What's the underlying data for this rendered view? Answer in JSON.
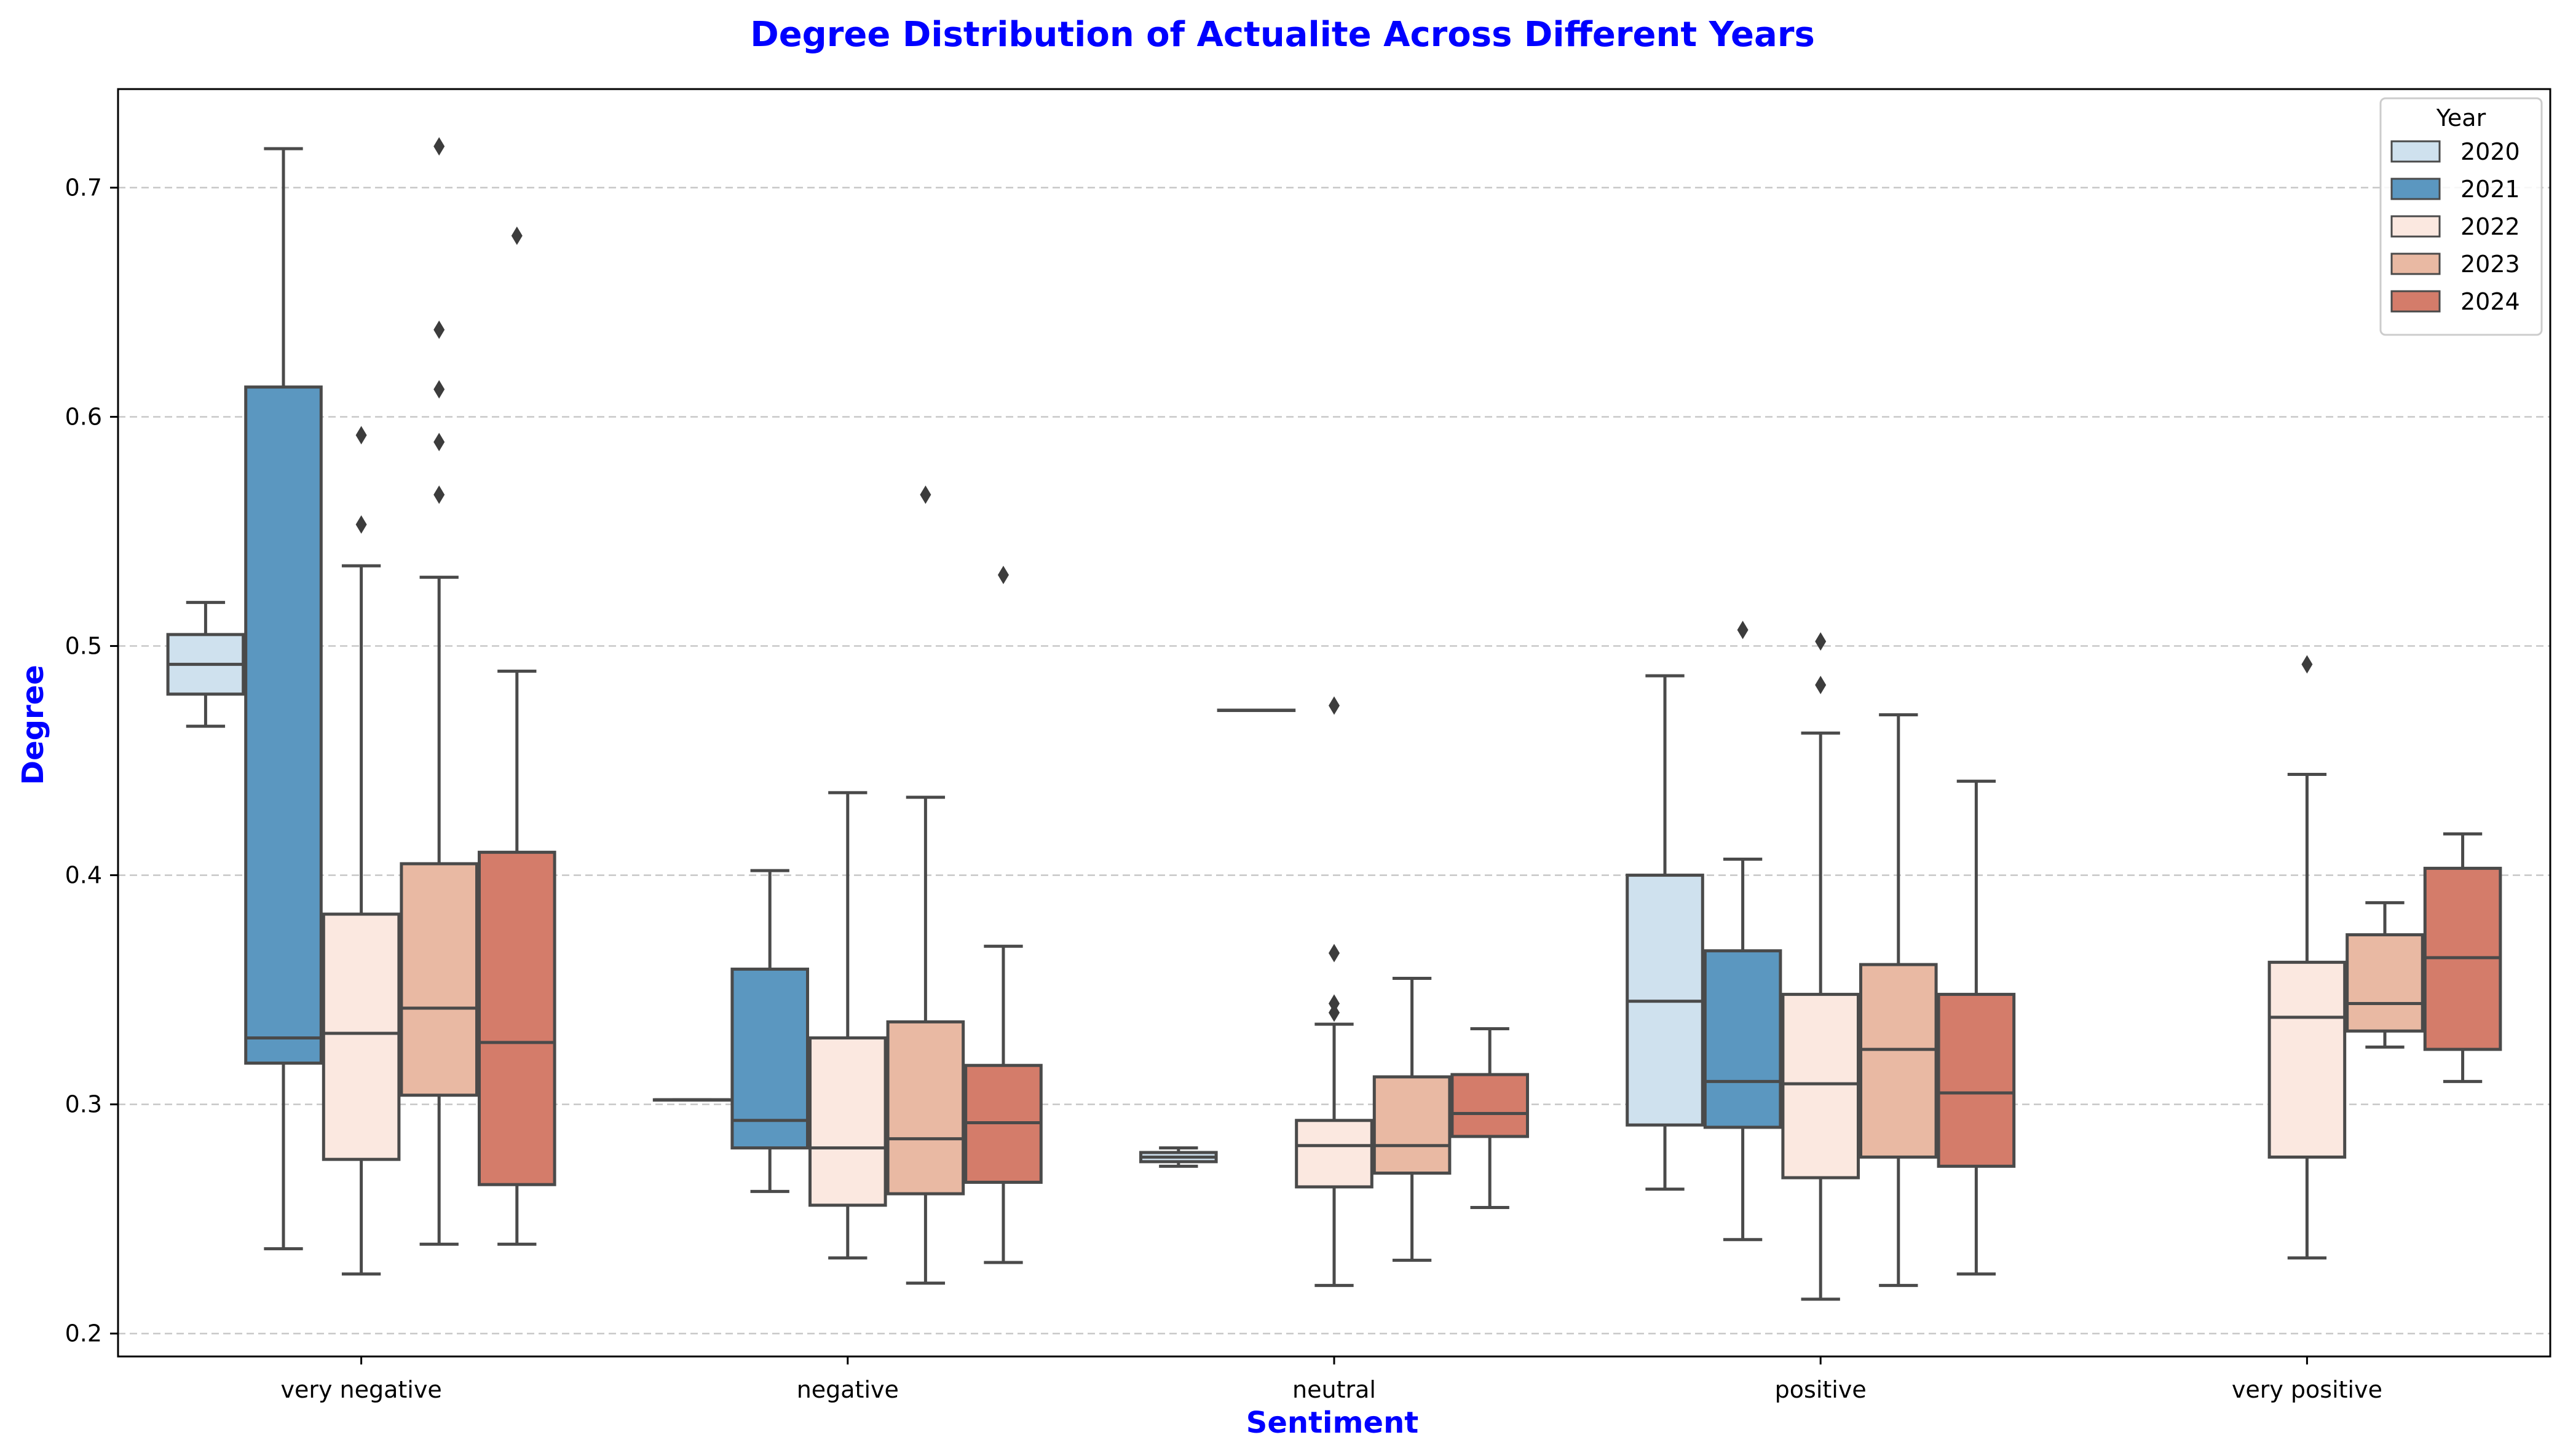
{
  "chart_data": {
    "type": "box",
    "title": "Degree Distribution of Actualite Across Different Years",
    "xlabel": "Sentiment",
    "ylabel": "Degree",
    "ylim": [
      0.19,
      0.743
    ],
    "yticks": [
      "0.2",
      "0.3",
      "0.4",
      "0.5",
      "0.6",
      "0.7"
    ],
    "categories": [
      "very negative",
      "negative",
      "neutral",
      "positive",
      "very positive"
    ],
    "grid": "horizontal dashed",
    "legend": {
      "title": "Year",
      "placement": "top-right"
    },
    "series": [
      {
        "name": "2020",
        "color": "#cfe1ee",
        "boxes": [
          {
            "category": "very negative",
            "whislo": 0.465,
            "q1": 0.479,
            "med": 0.492,
            "q3": 0.505,
            "whishi": 0.519,
            "fliers": []
          },
          {
            "category": "negative",
            "whislo": 0.302,
            "q1": 0.302,
            "med": 0.302,
            "q3": 0.302,
            "whishi": 0.302,
            "fliers": []
          },
          {
            "category": "neutral",
            "whislo": 0.273,
            "q1": 0.275,
            "med": 0.277,
            "q3": 0.279,
            "whishi": 0.281,
            "fliers": []
          },
          {
            "category": "positive",
            "whislo": 0.263,
            "q1": 0.291,
            "med": 0.345,
            "q3": 0.4,
            "whishi": 0.487,
            "fliers": []
          }
        ]
      },
      {
        "name": "2021",
        "color": "#5b97c0",
        "boxes": [
          {
            "category": "very negative",
            "whislo": 0.237,
            "q1": 0.318,
            "med": 0.329,
            "q3": 0.613,
            "whishi": 0.717,
            "fliers": []
          },
          {
            "category": "negative",
            "whislo": 0.262,
            "q1": 0.281,
            "med": 0.293,
            "q3": 0.359,
            "whishi": 0.402,
            "fliers": []
          },
          {
            "category": "neutral",
            "whislo": 0.472,
            "q1": 0.472,
            "med": 0.472,
            "q3": 0.472,
            "whishi": 0.472,
            "fliers": []
          },
          {
            "category": "positive",
            "whislo": 0.241,
            "q1": 0.29,
            "med": 0.31,
            "q3": 0.367,
            "whishi": 0.407,
            "fliers": [
              0.507
            ]
          }
        ]
      },
      {
        "name": "2022",
        "color": "#fbe8e0",
        "boxes": [
          {
            "category": "very negative",
            "whislo": 0.226,
            "q1": 0.276,
            "med": 0.331,
            "q3": 0.383,
            "whishi": 0.535,
            "fliers": [
              0.553,
              0.592
            ]
          },
          {
            "category": "negative",
            "whislo": 0.233,
            "q1": 0.256,
            "med": 0.281,
            "q3": 0.329,
            "whishi": 0.436,
            "fliers": []
          },
          {
            "category": "neutral",
            "whislo": 0.221,
            "q1": 0.264,
            "med": 0.282,
            "q3": 0.293,
            "whishi": 0.335,
            "fliers": [
              0.34,
              0.344,
              0.366,
              0.474
            ]
          },
          {
            "category": "positive",
            "whislo": 0.215,
            "q1": 0.268,
            "med": 0.309,
            "q3": 0.348,
            "whishi": 0.462,
            "fliers": [
              0.483,
              0.502
            ]
          },
          {
            "category": "very positive",
            "whislo": 0.233,
            "q1": 0.277,
            "med": 0.338,
            "q3": 0.362,
            "whishi": 0.444,
            "fliers": [
              0.492
            ]
          }
        ]
      },
      {
        "name": "2023",
        "color": "#e9b9a3",
        "boxes": [
          {
            "category": "very negative",
            "whislo": 0.239,
            "q1": 0.304,
            "med": 0.342,
            "q3": 0.405,
            "whishi": 0.53,
            "fliers": [
              0.566,
              0.589,
              0.612,
              0.638,
              0.718
            ]
          },
          {
            "category": "negative",
            "whislo": 0.222,
            "q1": 0.261,
            "med": 0.285,
            "q3": 0.336,
            "whishi": 0.434,
            "fliers": [
              0.566
            ]
          },
          {
            "category": "neutral",
            "whislo": 0.232,
            "q1": 0.27,
            "med": 0.282,
            "q3": 0.312,
            "whishi": 0.355,
            "fliers": []
          },
          {
            "category": "positive",
            "whislo": 0.221,
            "q1": 0.277,
            "med": 0.324,
            "q3": 0.361,
            "whishi": 0.47,
            "fliers": []
          },
          {
            "category": "very positive",
            "whislo": 0.325,
            "q1": 0.332,
            "med": 0.344,
            "q3": 0.374,
            "whishi": 0.388,
            "fliers": []
          }
        ]
      },
      {
        "name": "2024",
        "color": "#d47c6a",
        "boxes": [
          {
            "category": "very negative",
            "whislo": 0.239,
            "q1": 0.265,
            "med": 0.327,
            "q3": 0.41,
            "whishi": 0.489,
            "fliers": [
              0.679
            ]
          },
          {
            "category": "negative",
            "whislo": 0.231,
            "q1": 0.266,
            "med": 0.292,
            "q3": 0.317,
            "whishi": 0.369,
            "fliers": [
              0.531
            ]
          },
          {
            "category": "neutral",
            "whislo": 0.255,
            "q1": 0.286,
            "med": 0.296,
            "q3": 0.313,
            "whishi": 0.333,
            "fliers": []
          },
          {
            "category": "positive",
            "whislo": 0.226,
            "q1": 0.273,
            "med": 0.305,
            "q3": 0.348,
            "whishi": 0.441,
            "fliers": []
          },
          {
            "category": "very positive",
            "whislo": 0.31,
            "q1": 0.324,
            "med": 0.364,
            "q3": 0.403,
            "whishi": 0.418,
            "fliers": []
          }
        ]
      }
    ]
  }
}
